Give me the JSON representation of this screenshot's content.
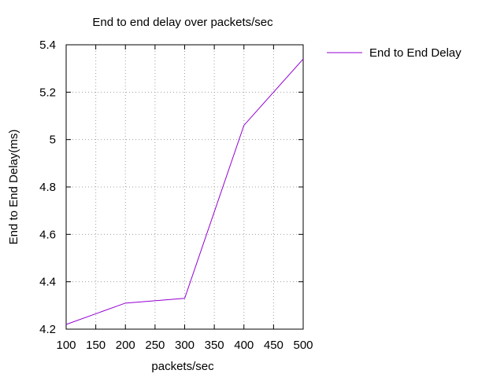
{
  "chart_data": {
    "type": "line",
    "title": "End to end delay over packets/sec",
    "xlabel": "packets/sec",
    "ylabel": "End to End Delay(ms)",
    "xlim": [
      100,
      500
    ],
    "ylim": [
      4.2,
      5.4
    ],
    "x_ticks": [
      100,
      150,
      200,
      250,
      300,
      350,
      400,
      450,
      500
    ],
    "y_ticks": [
      4.2,
      4.4,
      4.6,
      4.8,
      5.0,
      5.2,
      5.4
    ],
    "x_tick_labels": [
      "100",
      "150",
      "200",
      "250",
      "300",
      "350",
      "400",
      "450",
      "500"
    ],
    "y_tick_labels": [
      "4.2",
      "4.4",
      "4.6",
      "4.8",
      "5",
      "5.2",
      "5.4"
    ],
    "grid": true,
    "legend_position": "outside-top-right",
    "series": [
      {
        "name": "End to End Delay",
        "color": "#9400d3",
        "x": [
          100,
          200,
          300,
          400,
          500
        ],
        "y": [
          4.22,
          4.31,
          4.33,
          5.06,
          5.34
        ]
      }
    ]
  }
}
